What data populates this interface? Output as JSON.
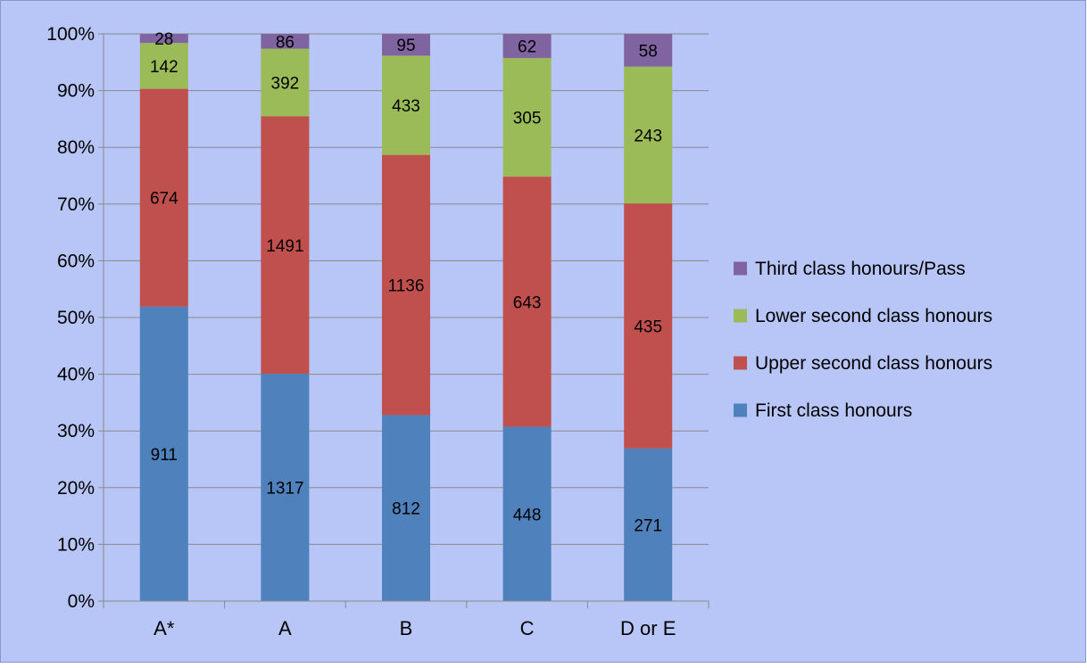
{
  "chart_data": {
    "type": "bar",
    "stacked": true,
    "normalized": true,
    "categories": [
      "A*",
      "A",
      "B",
      "C",
      "D or E"
    ],
    "series": [
      {
        "name": "First class honours",
        "color": "#4F81BD",
        "values": [
          911,
          1317,
          812,
          448,
          271
        ]
      },
      {
        "name": "Upper second class honours",
        "color": "#C0504D",
        "values": [
          674,
          1491,
          1136,
          643,
          435
        ]
      },
      {
        "name": "Lower second class honours",
        "color": "#9BBB59",
        "values": [
          142,
          392,
          433,
          305,
          243
        ]
      },
      {
        "name": "Third class honours/Pass",
        "color": "#8064A2",
        "values": [
          28,
          86,
          95,
          62,
          58
        ]
      }
    ],
    "y_ticks": [
      "0%",
      "10%",
      "20%",
      "30%",
      "40%",
      "50%",
      "60%",
      "70%",
      "80%",
      "90%",
      "100%"
    ],
    "ylim": [
      0,
      100
    ],
    "grid": true,
    "legend_position": "right",
    "background_color": "#B7C5F7",
    "border_color": "#8896CF"
  }
}
